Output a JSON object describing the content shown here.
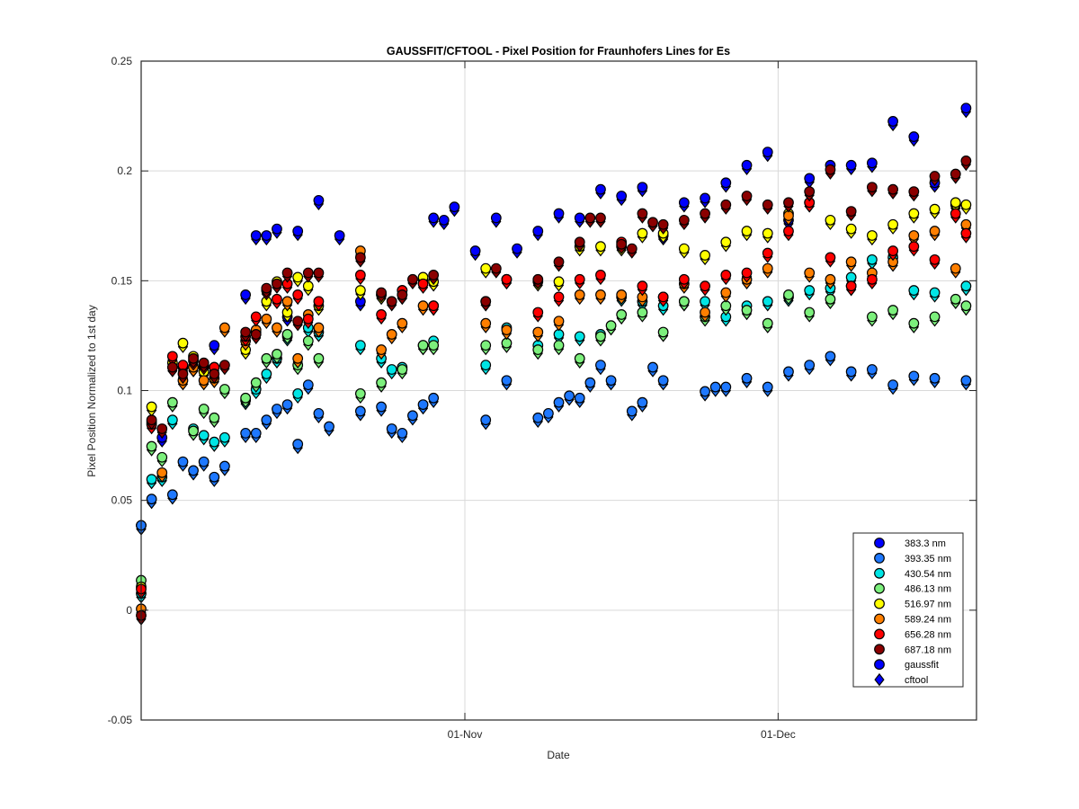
{
  "chart_data": {
    "type": "scatter",
    "title": "GAUSSFIT/CFTOOL - Pixel Position for Fraunhofers Lines for Es",
    "xlabel": "Date",
    "ylabel": "Pixel Position Normalized to 1st day",
    "x_axis": {
      "type": "date",
      "range": [
        "2015-10-01",
        "2015-12-20"
      ],
      "ticks": [
        {
          "date": "2015-11-01",
          "label": "01-Nov"
        },
        {
          "date": "2015-12-01",
          "label": "01-Dec"
        }
      ]
    },
    "ylim": [
      -0.05,
      0.25
    ],
    "yticks": [
      -0.05,
      0,
      0.05,
      0.1,
      0.15,
      0.2,
      0.25
    ],
    "ytick_labels": [
      "-0.05",
      "0",
      "0.05",
      "0.1",
      "0.15",
      "0.2",
      "0.25"
    ],
    "grid": true,
    "legend_position": "bottom-right",
    "marker_legend": [
      {
        "name": "gaussfit",
        "marker": "circle"
      },
      {
        "name": "cftool",
        "marker": "diamond"
      }
    ],
    "series": [
      {
        "name": "383.3 nm",
        "color": "#0000ff",
        "x": [
          "2015-10-01",
          "2015-10-03",
          "2015-10-05",
          "2015-10-06",
          "2015-10-07",
          "2015-10-08",
          "2015-10-11",
          "2015-10-12",
          "2015-10-13",
          "2015-10-14",
          "2015-10-15",
          "2015-10-16",
          "2015-10-18",
          "2015-10-20",
          "2015-10-22",
          "2015-10-24",
          "2015-10-26",
          "2015-10-28",
          "2015-10-29",
          "2015-10-30",
          "2015-10-31",
          "2015-11-02",
          "2015-11-04",
          "2015-11-06",
          "2015-11-08",
          "2015-11-10",
          "2015-11-12",
          "2015-11-14",
          "2015-11-16",
          "2015-11-18",
          "2015-11-20",
          "2015-11-22",
          "2015-11-24",
          "2015-11-26",
          "2015-11-28",
          "2015-11-30",
          "2015-12-02",
          "2015-12-04",
          "2015-12-06",
          "2015-12-08",
          "2015-12-10",
          "2015-12-12",
          "2015-12-14",
          "2015-12-16",
          "2015-12-18",
          "2015-12-19"
        ],
        "y": [
          0.038,
          0.078,
          0.11,
          0.11,
          0.11,
          0.12,
          0.143,
          0.17,
          0.17,
          0.173,
          0.133,
          0.172,
          0.186,
          0.17,
          0.14,
          0.143,
          0.145,
          0.15,
          0.178,
          0.177,
          0.183,
          0.163,
          0.178,
          0.164,
          0.172,
          0.18,
          0.178,
          0.191,
          0.188,
          0.192,
          0.17,
          0.185,
          0.187,
          0.194,
          0.202,
          0.208,
          0.177,
          0.196,
          0.202,
          0.202,
          0.203,
          0.222,
          0.215,
          0.194,
          0.184,
          0.228
        ]
      },
      {
        "name": "393.35 nm",
        "color": "#1e78ff",
        "x": [
          "2015-10-01",
          "2015-10-02",
          "2015-10-04",
          "2015-10-05",
          "2015-10-06",
          "2015-10-07",
          "2015-10-08",
          "2015-10-09",
          "2015-10-11",
          "2015-10-12",
          "2015-10-13",
          "2015-10-14",
          "2015-10-15",
          "2015-10-16",
          "2015-10-17",
          "2015-10-18",
          "2015-10-19",
          "2015-10-22",
          "2015-10-24",
          "2015-10-25",
          "2015-10-26",
          "2015-10-27",
          "2015-10-28",
          "2015-10-29",
          "2015-11-03",
          "2015-11-05",
          "2015-11-08",
          "2015-11-09",
          "2015-11-10",
          "2015-11-11",
          "2015-11-12",
          "2015-11-13",
          "2015-11-14",
          "2015-11-15",
          "2015-11-17",
          "2015-11-18",
          "2015-11-19",
          "2015-11-20",
          "2015-11-24",
          "2015-11-25",
          "2015-11-26",
          "2015-11-28",
          "2015-11-30",
          "2015-12-02",
          "2015-12-04",
          "2015-12-06",
          "2015-12-08",
          "2015-12-10",
          "2015-12-12",
          "2015-12-14",
          "2015-12-16",
          "2015-12-19"
        ],
        "y": [
          0.038,
          0.05,
          0.052,
          0.067,
          0.063,
          0.067,
          0.06,
          0.065,
          0.08,
          0.08,
          0.086,
          0.091,
          0.093,
          0.075,
          0.102,
          0.089,
          0.083,
          0.09,
          0.092,
          0.082,
          0.08,
          0.088,
          0.093,
          0.096,
          0.086,
          0.104,
          0.087,
          0.089,
          0.094,
          0.097,
          0.096,
          0.103,
          0.111,
          0.104,
          0.09,
          0.094,
          0.11,
          0.104,
          0.099,
          0.101,
          0.101,
          0.105,
          0.101,
          0.108,
          0.111,
          0.115,
          0.108,
          0.109,
          0.102,
          0.106,
          0.105,
          0.104
        ]
      },
      {
        "name": "430.54 nm",
        "color": "#00e5e5",
        "x": [
          "2015-10-01",
          "2015-10-02",
          "2015-10-03",
          "2015-10-04",
          "2015-10-06",
          "2015-10-07",
          "2015-10-08",
          "2015-10-09",
          "2015-10-11",
          "2015-10-12",
          "2015-10-13",
          "2015-10-14",
          "2015-10-15",
          "2015-10-16",
          "2015-10-17",
          "2015-10-18",
          "2015-10-22",
          "2015-10-24",
          "2015-10-25",
          "2015-10-26",
          "2015-10-28",
          "2015-10-29",
          "2015-11-03",
          "2015-11-05",
          "2015-11-08",
          "2015-11-10",
          "2015-11-12",
          "2015-11-14",
          "2015-11-16",
          "2015-11-18",
          "2015-11-20",
          "2015-11-22",
          "2015-11-24",
          "2015-11-26",
          "2015-11-28",
          "2015-11-30",
          "2015-12-02",
          "2015-12-04",
          "2015-12-06",
          "2015-12-08",
          "2015-12-10",
          "2015-12-12",
          "2015-12-14",
          "2015-12-16",
          "2015-12-19"
        ],
        "y": [
          0.007,
          0.059,
          0.06,
          0.086,
          0.082,
          0.079,
          0.076,
          0.078,
          0.095,
          0.1,
          0.107,
          0.114,
          0.124,
          0.098,
          0.128,
          0.126,
          0.12,
          0.114,
          0.109,
          0.11,
          0.12,
          0.122,
          0.111,
          0.128,
          0.12,
          0.125,
          0.124,
          0.125,
          0.142,
          0.14,
          0.138,
          0.14,
          0.14,
          0.133,
          0.138,
          0.14,
          0.142,
          0.145,
          0.146,
          0.151,
          0.159,
          0.16,
          0.145,
          0.144,
          0.147
        ]
      },
      {
        "name": "486.13 nm",
        "color": "#7cf07c",
        "x": [
          "2015-10-01",
          "2015-10-02",
          "2015-10-03",
          "2015-10-04",
          "2015-10-06",
          "2015-10-07",
          "2015-10-08",
          "2015-10-09",
          "2015-10-11",
          "2015-10-12",
          "2015-10-13",
          "2015-10-14",
          "2015-10-15",
          "2015-10-16",
          "2015-10-17",
          "2015-10-18",
          "2015-10-22",
          "2015-10-24",
          "2015-10-26",
          "2015-10-28",
          "2015-10-29",
          "2015-11-03",
          "2015-11-05",
          "2015-11-08",
          "2015-11-10",
          "2015-11-12",
          "2015-11-14",
          "2015-11-15",
          "2015-11-16",
          "2015-11-18",
          "2015-11-20",
          "2015-11-22",
          "2015-11-24",
          "2015-11-26",
          "2015-11-28",
          "2015-11-30",
          "2015-12-02",
          "2015-12-04",
          "2015-12-06",
          "2015-12-08",
          "2015-12-10",
          "2015-12-12",
          "2015-12-14",
          "2015-12-16",
          "2015-12-18",
          "2015-12-19"
        ],
        "y": [
          0.013,
          0.074,
          0.069,
          0.094,
          0.081,
          0.091,
          0.087,
          0.1,
          0.096,
          0.103,
          0.114,
          0.116,
          0.125,
          0.111,
          0.122,
          0.114,
          0.098,
          0.103,
          0.109,
          0.12,
          0.12,
          0.12,
          0.121,
          0.118,
          0.12,
          0.114,
          0.124,
          0.129,
          0.134,
          0.135,
          0.126,
          0.14,
          0.133,
          0.138,
          0.136,
          0.13,
          0.143,
          0.135,
          0.141,
          0.147,
          0.133,
          0.136,
          0.13,
          0.133,
          0.141,
          0.138
        ]
      },
      {
        "name": "516.97 nm",
        "color": "#ffff00",
        "x": [
          "2015-10-01",
          "2015-10-02",
          "2015-10-04",
          "2015-10-05",
          "2015-10-06",
          "2015-10-07",
          "2015-10-08",
          "2015-10-11",
          "2015-10-12",
          "2015-10-13",
          "2015-10-14",
          "2015-10-15",
          "2015-10-16",
          "2015-10-17",
          "2015-10-18",
          "2015-10-22",
          "2015-10-24",
          "2015-10-26",
          "2015-10-28",
          "2015-10-29",
          "2015-11-03",
          "2015-11-05",
          "2015-11-08",
          "2015-11-10",
          "2015-11-12",
          "2015-11-14",
          "2015-11-16",
          "2015-11-18",
          "2015-11-20",
          "2015-11-22",
          "2015-11-24",
          "2015-11-26",
          "2015-11-28",
          "2015-11-30",
          "2015-12-02",
          "2015-12-04",
          "2015-12-06",
          "2015-12-08",
          "2015-12-10",
          "2015-12-12",
          "2015-12-14",
          "2015-12-16",
          "2015-12-18",
          "2015-12-19"
        ],
        "y": [
          0.01,
          0.092,
          0.112,
          0.121,
          0.115,
          0.108,
          0.11,
          0.118,
          0.126,
          0.14,
          0.149,
          0.135,
          0.151,
          0.147,
          0.138,
          0.145,
          0.143,
          0.143,
          0.151,
          0.149,
          0.155,
          0.15,
          0.149,
          0.149,
          0.165,
          0.165,
          0.165,
          0.171,
          0.171,
          0.164,
          0.161,
          0.167,
          0.172,
          0.171,
          0.18,
          0.185,
          0.177,
          0.173,
          0.17,
          0.175,
          0.18,
          0.182,
          0.185,
          0.184
        ]
      },
      {
        "name": "589.24 nm",
        "color": "#ff7f00",
        "x": [
          "2015-10-01",
          "2015-10-02",
          "2015-10-03",
          "2015-10-05",
          "2015-10-06",
          "2015-10-07",
          "2015-10-08",
          "2015-10-09",
          "2015-10-11",
          "2015-10-12",
          "2015-10-13",
          "2015-10-14",
          "2015-10-15",
          "2015-10-16",
          "2015-10-17",
          "2015-10-18",
          "2015-10-22",
          "2015-10-24",
          "2015-10-25",
          "2015-10-26",
          "2015-10-28",
          "2015-10-29",
          "2015-11-03",
          "2015-11-05",
          "2015-11-08",
          "2015-11-10",
          "2015-11-12",
          "2015-11-14",
          "2015-11-16",
          "2015-11-18",
          "2015-11-20",
          "2015-11-22",
          "2015-11-24",
          "2015-11-26",
          "2015-11-28",
          "2015-11-30",
          "2015-12-02",
          "2015-12-04",
          "2015-12-06",
          "2015-12-08",
          "2015-12-10",
          "2015-12-12",
          "2015-12-14",
          "2015-12-16",
          "2015-12-18",
          "2015-12-19"
        ],
        "y": [
          0.0,
          0.085,
          0.062,
          0.104,
          0.11,
          0.104,
          0.105,
          0.128,
          0.122,
          0.127,
          0.132,
          0.128,
          0.14,
          0.114,
          0.134,
          0.128,
          0.163,
          0.118,
          0.125,
          0.13,
          0.138,
          0.138,
          0.13,
          0.127,
          0.126,
          0.131,
          0.143,
          0.143,
          0.143,
          0.142,
          0.142,
          0.148,
          0.135,
          0.144,
          0.15,
          0.155,
          0.179,
          0.153,
          0.15,
          0.158,
          0.153,
          0.158,
          0.17,
          0.172,
          0.155,
          0.175
        ]
      },
      {
        "name": "656.28 nm",
        "color": "#ff0000",
        "x": [
          "2015-10-01",
          "2015-10-02",
          "2015-10-04",
          "2015-10-05",
          "2015-10-06",
          "2015-10-07",
          "2015-10-08",
          "2015-10-11",
          "2015-10-12",
          "2015-10-13",
          "2015-10-14",
          "2015-10-15",
          "2015-10-16",
          "2015-10-17",
          "2015-10-18",
          "2015-10-22",
          "2015-10-24",
          "2015-10-26",
          "2015-10-28",
          "2015-10-29",
          "2015-11-03",
          "2015-11-05",
          "2015-11-08",
          "2015-11-10",
          "2015-11-12",
          "2015-11-14",
          "2015-11-16",
          "2015-11-18",
          "2015-11-20",
          "2015-11-22",
          "2015-11-24",
          "2015-11-26",
          "2015-11-28",
          "2015-11-30",
          "2015-12-02",
          "2015-12-04",
          "2015-12-06",
          "2015-12-08",
          "2015-12-10",
          "2015-12-12",
          "2015-12-14",
          "2015-12-16",
          "2015-12-18",
          "2015-12-19"
        ],
        "y": [
          0.009,
          0.084,
          0.115,
          0.111,
          0.113,
          0.111,
          0.11,
          0.124,
          0.133,
          0.145,
          0.141,
          0.148,
          0.143,
          0.132,
          0.14,
          0.152,
          0.134,
          0.145,
          0.148,
          0.138,
          0.14,
          0.15,
          0.135,
          0.142,
          0.15,
          0.152,
          0.167,
          0.147,
          0.142,
          0.15,
          0.147,
          0.152,
          0.153,
          0.162,
          0.172,
          0.185,
          0.16,
          0.147,
          0.15,
          0.163,
          0.165,
          0.159,
          0.18,
          0.171
        ]
      },
      {
        "name": "687.18 nm",
        "color": "#8b0000",
        "x": [
          "2015-10-01",
          "2015-10-02",
          "2015-10-03",
          "2015-10-04",
          "2015-10-05",
          "2015-10-06",
          "2015-10-07",
          "2015-10-08",
          "2015-10-09",
          "2015-10-11",
          "2015-10-12",
          "2015-10-13",
          "2015-10-14",
          "2015-10-15",
          "2015-10-16",
          "2015-10-17",
          "2015-10-18",
          "2015-10-22",
          "2015-10-24",
          "2015-10-25",
          "2015-10-26",
          "2015-10-27",
          "2015-10-29",
          "2015-11-03",
          "2015-11-04",
          "2015-11-08",
          "2015-11-10",
          "2015-11-12",
          "2015-11-13",
          "2015-11-14",
          "2015-11-16",
          "2015-11-17",
          "2015-11-18",
          "2015-11-19",
          "2015-11-20",
          "2015-11-22",
          "2015-11-24",
          "2015-11-26",
          "2015-11-28",
          "2015-11-30",
          "2015-12-02",
          "2015-12-04",
          "2015-12-06",
          "2015-12-08",
          "2015-12-10",
          "2015-12-12",
          "2015-12-14",
          "2015-12-16",
          "2015-12-18",
          "2015-12-19"
        ],
        "y": [
          -0.003,
          0.086,
          0.082,
          0.11,
          0.107,
          0.114,
          0.112,
          0.107,
          0.111,
          0.126,
          0.125,
          0.146,
          0.148,
          0.153,
          0.131,
          0.153,
          0.153,
          0.16,
          0.144,
          0.14,
          0.143,
          0.15,
          0.152,
          0.14,
          0.155,
          0.15,
          0.158,
          0.167,
          0.178,
          0.178,
          0.166,
          0.164,
          0.18,
          0.176,
          0.175,
          0.177,
          0.18,
          0.184,
          0.188,
          0.184,
          0.185,
          0.19,
          0.2,
          0.181,
          0.192,
          0.191,
          0.19,
          0.197,
          0.198,
          0.204
        ]
      }
    ]
  }
}
